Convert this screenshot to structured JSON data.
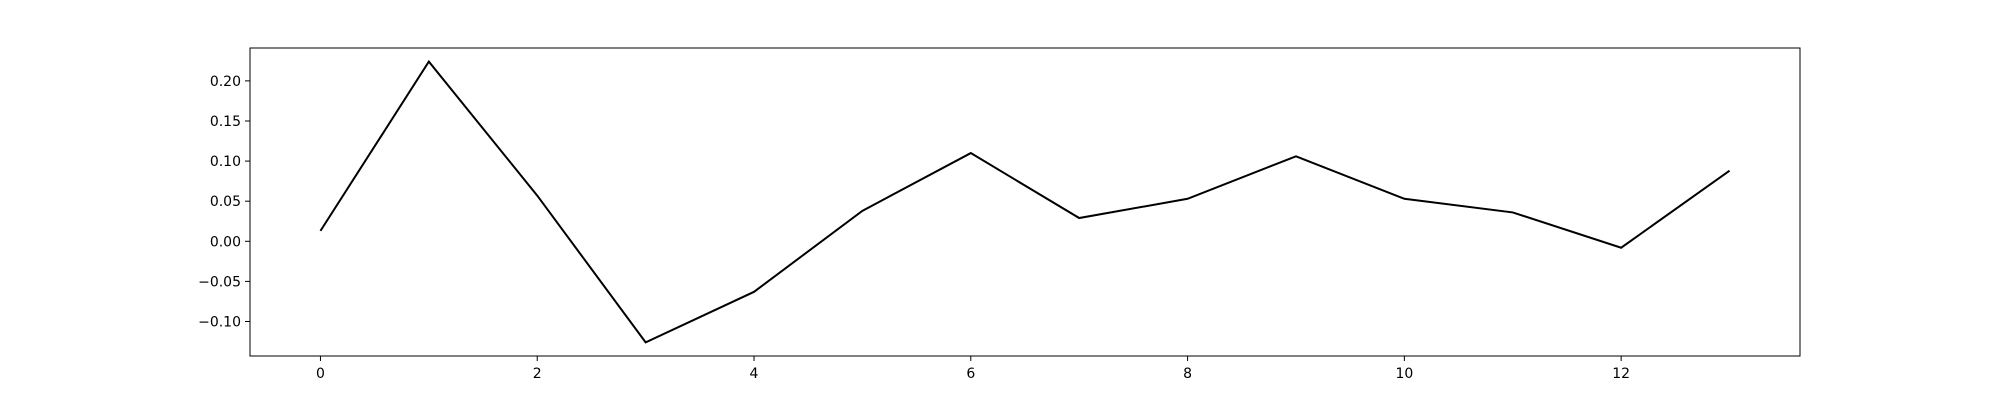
{
  "chart_data": {
    "type": "line",
    "title": "",
    "xlabel": "",
    "ylabel": "",
    "x": [
      0,
      1,
      2,
      3,
      4,
      5,
      6,
      7,
      8,
      9,
      10,
      11,
      12,
      13
    ],
    "series": [
      {
        "values": [
          0.013,
          0.224,
          0.057,
          -0.126,
          -0.063,
          0.038,
          0.11,
          0.029,
          0.053,
          0.106,
          0.053,
          0.036,
          -0.008,
          0.088
        ],
        "color": "#000000"
      }
    ],
    "xlim": [
      -0.65,
      13.65
    ],
    "ylim": [
      -0.143,
      0.241
    ],
    "xticks": [
      0,
      2,
      4,
      6,
      8,
      10,
      12
    ],
    "xtick_labels": [
      "0",
      "2",
      "4",
      "6",
      "8",
      "10",
      "12"
    ],
    "yticks": [
      -0.1,
      -0.05,
      0.0,
      0.05,
      0.1,
      0.15,
      0.2
    ],
    "ytick_labels": [
      "−0.10",
      "−0.05",
      "0.00",
      "0.05",
      "0.10",
      "0.15",
      "0.20"
    ],
    "grid": false,
    "legend": false
  }
}
